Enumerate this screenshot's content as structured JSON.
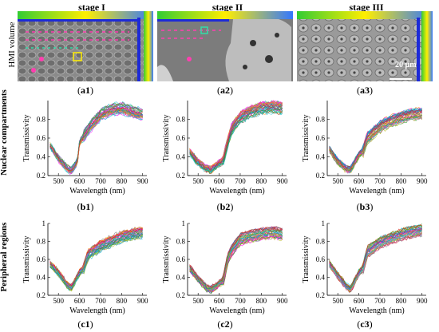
{
  "stages": [
    "stage I",
    "stage II",
    "stage III"
  ],
  "row_labels": {
    "volume": "HMI volume",
    "nuclear": "Nuclear compartments",
    "peripheral": "Peripheral regions"
  },
  "scale_bar": "20 µm",
  "panels": {
    "a": [
      {
        "letter": "a",
        "num": "1"
      },
      {
        "letter": "a",
        "num": "2"
      },
      {
        "letter": "a",
        "num": "3"
      }
    ],
    "b": [
      {
        "letter": "b",
        "num": "1"
      },
      {
        "letter": "b",
        "num": "2"
      },
      {
        "letter": "b",
        "num": "3"
      }
    ],
    "c": [
      {
        "letter": "c",
        "num": "1"
      },
      {
        "letter": "c",
        "num": "2"
      },
      {
        "letter": "c",
        "num": "3"
      }
    ]
  },
  "chart_data": [
    {
      "type": "line",
      "panel": "b1",
      "xlabel": "Wavelength (nm)",
      "ylabel": "Transmissivity",
      "xlim": [
        450,
        920
      ],
      "ylim": [
        0.2,
        1.0
      ],
      "xticks": [
        500,
        600,
        700,
        800,
        900
      ],
      "yticks": [
        0.2,
        0.4,
        0.6,
        0.8
      ],
      "x": [
        460,
        500,
        540,
        560,
        590,
        600,
        620,
        650,
        700,
        750,
        800,
        850,
        900
      ],
      "series": [
        {
          "values": [
            0.52,
            0.38,
            0.28,
            0.25,
            0.34,
            0.55,
            0.62,
            0.72,
            0.85,
            0.9,
            0.92,
            0.88,
            0.85
          ]
        }
      ]
    },
    {
      "type": "line",
      "panel": "b2",
      "xlabel": "Wavelength (nm)",
      "ylabel": "Transmissivity",
      "xlim": [
        450,
        920
      ],
      "ylim": [
        0.2,
        1.0
      ],
      "xticks": [
        500,
        600,
        700,
        800,
        900
      ],
      "yticks": [
        0.2,
        0.4,
        0.6,
        0.8
      ],
      "x": [
        460,
        500,
        540,
        560,
        600,
        620,
        640,
        660,
        700,
        750,
        800,
        850,
        900
      ],
      "series": [
        {
          "values": [
            0.45,
            0.34,
            0.27,
            0.26,
            0.33,
            0.36,
            0.55,
            0.7,
            0.82,
            0.88,
            0.92,
            0.93,
            0.92
          ]
        }
      ]
    },
    {
      "type": "line",
      "panel": "b3",
      "xlabel": "Wavelength (nm)",
      "ylabel": "Transmissivity",
      "xlim": [
        450,
        920
      ],
      "ylim": [
        0.2,
        1.0
      ],
      "xticks": [
        500,
        600,
        700,
        800,
        900
      ],
      "yticks": [
        0.2,
        0.4,
        0.6,
        0.8
      ],
      "x": [
        460,
        500,
        540,
        560,
        600,
        620,
        640,
        700,
        750,
        800,
        850,
        900
      ],
      "series": [
        {
          "values": [
            0.48,
            0.35,
            0.27,
            0.26,
            0.42,
            0.46,
            0.6,
            0.72,
            0.78,
            0.82,
            0.85,
            0.86
          ]
        }
      ]
    },
    {
      "type": "line",
      "panel": "c1",
      "xlabel": "Wavelength (nm)",
      "ylabel": "Transmissivity",
      "xlim": [
        450,
        920
      ],
      "ylim": [
        0.2,
        1.0
      ],
      "xticks": [
        500,
        600,
        700,
        800,
        900
      ],
      "yticks": [
        0.2,
        0.4,
        0.6,
        0.8,
        1
      ],
      "x": [
        460,
        500,
        540,
        560,
        600,
        620,
        640,
        700,
        750,
        800,
        850,
        900
      ],
      "series": [
        {
          "values": [
            0.55,
            0.45,
            0.32,
            0.28,
            0.45,
            0.5,
            0.65,
            0.75,
            0.8,
            0.85,
            0.88,
            0.9
          ]
        }
      ]
    },
    {
      "type": "line",
      "panel": "c2",
      "xlabel": "Wavelength (nm)",
      "ylabel": "Transmissivity",
      "xlim": [
        450,
        920
      ],
      "ylim": [
        0.2,
        1.0
      ],
      "xticks": [
        500,
        600,
        700,
        800,
        900
      ],
      "yticks": [
        0.2,
        0.4,
        0.6,
        0.8,
        1
      ],
      "x": [
        460,
        500,
        540,
        560,
        600,
        620,
        640,
        660,
        700,
        750,
        800,
        850,
        900
      ],
      "series": [
        {
          "values": [
            0.5,
            0.38,
            0.28,
            0.26,
            0.33,
            0.36,
            0.6,
            0.7,
            0.82,
            0.86,
            0.88,
            0.9,
            0.88
          ]
        }
      ]
    },
    {
      "type": "line",
      "panel": "c3",
      "xlabel": "Wavelength (nm)",
      "ylabel": "Transmissivity",
      "xlim": [
        450,
        920
      ],
      "ylim": [
        0.2,
        1.0
      ],
      "xticks": [
        500,
        600,
        700,
        800,
        900
      ],
      "yticks": [
        0.2,
        0.4,
        0.6,
        0.8,
        1
      ],
      "x": [
        460,
        500,
        540,
        560,
        600,
        620,
        640,
        700,
        750,
        800,
        850,
        900
      ],
      "series": [
        {
          "values": [
            0.55,
            0.42,
            0.3,
            0.26,
            0.45,
            0.5,
            0.68,
            0.78,
            0.83,
            0.87,
            0.9,
            0.92
          ]
        }
      ]
    }
  ]
}
